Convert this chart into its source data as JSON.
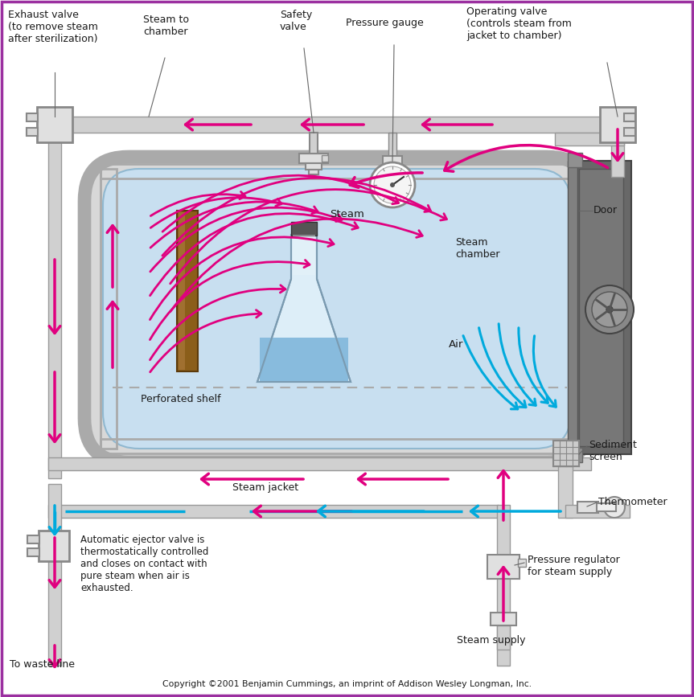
{
  "background_color": "#ffffff",
  "border_color": "#9b30a0",
  "chamber_fill": "#c8dff0",
  "jacket_fill": "#d8d8d8",
  "jacket_stroke": "#aaaaaa",
  "pipe_color": "#aaaaaa",
  "steam_color": "#e0007f",
  "air_color": "#00aadd",
  "text_color": "#1a1a1a",
  "copyright": "Copyright ©2001 Benjamin Cummings, an imprint of Addison Wesley Longman, Inc.",
  "labels": {
    "exhaust_valve": "Exhaust valve\n(to remove steam\nafter sterilization)",
    "steam_to_chamber": "Steam to\nchamber",
    "safety_valve": "Safety\nvalve",
    "pressure_gauge": "Pressure gauge",
    "operating_valve": "Operating valve\n(controls steam from\njacket to chamber)",
    "door": "Door",
    "steam_chamber": "Steam\nchamber",
    "steam_lbl": "Steam",
    "air_lbl": "Air",
    "perforated_shelf": "Perforated shelf",
    "sediment_screen": "Sediment\nscreen",
    "thermometer": "Thermometer",
    "steam_jacket": "Steam jacket",
    "pressure_regulator": "Pressure regulator\nfor steam supply",
    "steam_supply": "Steam supply",
    "ejector_valve": "Automatic ejector valve is\nthermostatically controlled\nand closes on contact with\npure steam when air is\nexhausted.",
    "waste_line": "To waste line"
  }
}
